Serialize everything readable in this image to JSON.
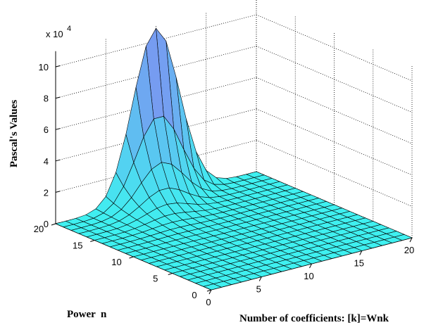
{
  "chart_data": {
    "type": "surface",
    "title": "",
    "xlabel": "Number of coefficients: [k]=Wnk",
    "ylabel": "Power  n",
    "zlabel": "Pascal's Values",
    "z_multiplier": "x 10",
    "z_exponent": "4",
    "xlim": [
      0,
      20
    ],
    "ylim": [
      0,
      20
    ],
    "zlim": [
      0,
      11
    ],
    "x_ticks": [
      "0",
      "5",
      "10",
      "15",
      "20"
    ],
    "y_ticks": [
      "0",
      "5",
      "10",
      "15",
      "20"
    ],
    "z_ticks": [
      "0",
      "2",
      "4",
      "6",
      "8",
      "10"
    ],
    "grid": true,
    "grid_points_per_axis": 21,
    "surface_description": "Binomial coefficients C(n,k) over n,k in 0..20, zero where k>n; peak 10.8 (x10^4) at n=20, k=10",
    "peak_value": 10.8,
    "colors": {
      "low": "#3ff0f0",
      "high": "#8a7df2",
      "edge": "#000000",
      "grid": "#000000"
    }
  }
}
